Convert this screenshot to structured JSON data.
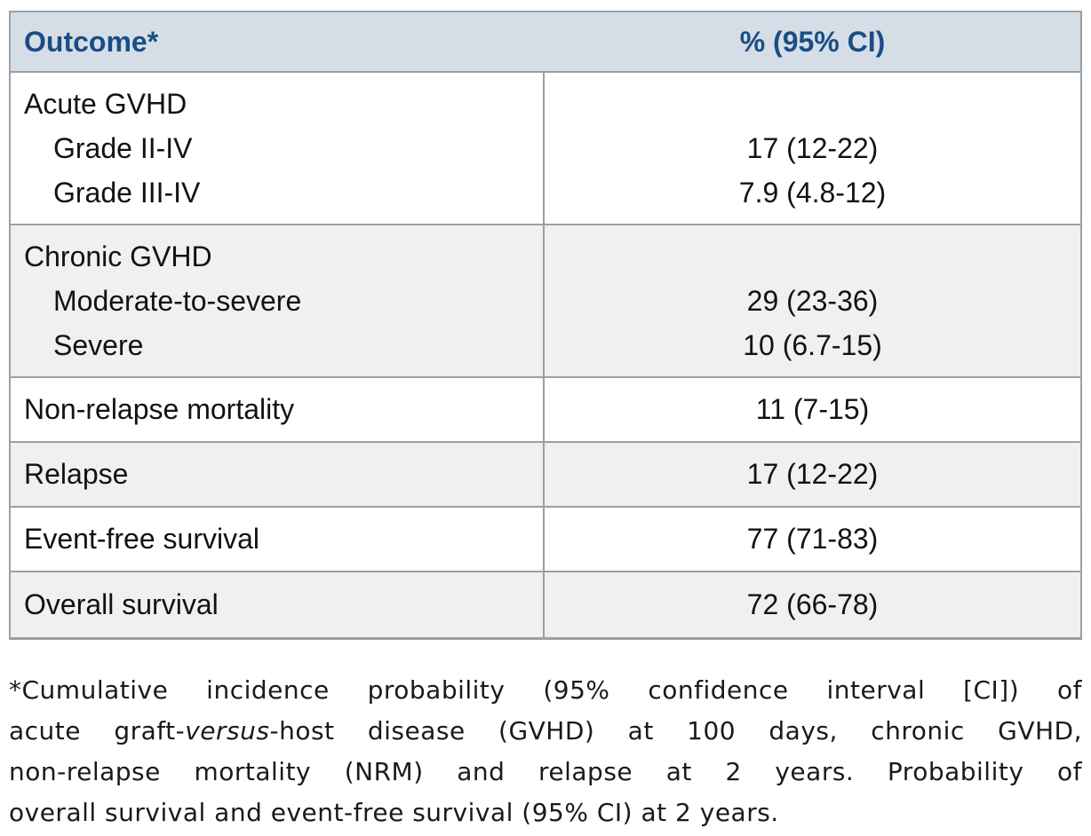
{
  "colors": {
    "header_bg": "#d5dee6",
    "header_text": "#1b4d85",
    "row_alt_bg": "#f0f0f0",
    "border": "#9aa0a5",
    "body_text": "#121212"
  },
  "table": {
    "columns": [
      {
        "label": "Outcome*"
      },
      {
        "label": "% (95% CI)"
      }
    ],
    "rows": [
      {
        "type": "group",
        "label": "Acute GVHD",
        "items": [
          {
            "label": "Grade II-IV",
            "value": "17 (12-22)"
          },
          {
            "label": "Grade III-IV",
            "value": "7.9 (4.8-12)"
          }
        ]
      },
      {
        "type": "group",
        "label": "Chronic GVHD",
        "items": [
          {
            "label": "Moderate-to-severe",
            "value": "29 (23-36)"
          },
          {
            "label": "Severe",
            "value": "10 (6.7-15)"
          }
        ]
      },
      {
        "type": "simple",
        "label": "Non-relapse mortality",
        "value": "11 (7-15)"
      },
      {
        "type": "simple",
        "label": "Relapse",
        "value": "17 (12-22)"
      },
      {
        "type": "simple",
        "label": "Event-free survival",
        "value": "77 (71-83)"
      },
      {
        "type": "simple",
        "label": "Overall survival",
        "value": "72 (66-78)"
      }
    ]
  },
  "footnote": {
    "line1": "*Cumulative incidence probability (95% confidence interval [CI]) of",
    "line2_pre": "acute graft-",
    "line2_italic": "versus",
    "line2_post": "-host disease (GVHD) at 100 days, chronic GVHD,",
    "line3": "non-relapse mortality (NRM) and relapse at 2 years. Probability of",
    "line4": "overall survival and event-free survival (95% CI) at 2 years."
  },
  "chart_data": {
    "type": "table",
    "title": "Outcome* vs % (95% CI)",
    "columns": [
      "Outcome*",
      "% (95% CI)"
    ],
    "rows": [
      [
        "Acute GVHD",
        ""
      ],
      [
        "Grade II-IV",
        "17 (12-22)"
      ],
      [
        "Grade III-IV",
        "7.9 (4.8-12)"
      ],
      [
        "Chronic GVHD",
        ""
      ],
      [
        "Moderate-to-severe",
        "29 (23-36)"
      ],
      [
        "Severe",
        "10 (6.7-15)"
      ],
      [
        "Non-relapse mortality",
        "11 (7-15)"
      ],
      [
        "Relapse",
        "17 (12-22)"
      ],
      [
        "Event-free survival",
        "77 (71-83)"
      ],
      [
        "Overall survival",
        "72 (66-78)"
      ]
    ]
  }
}
